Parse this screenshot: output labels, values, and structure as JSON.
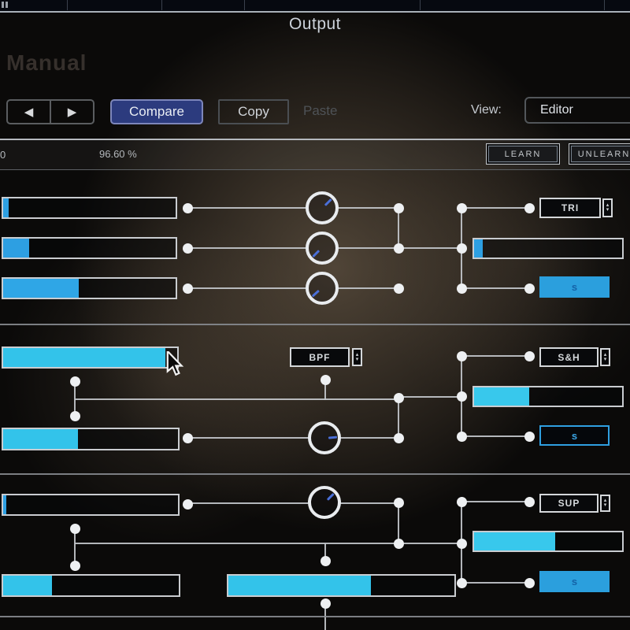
{
  "header": {
    "title": "Output",
    "manual": "Manual"
  },
  "toolbar": {
    "prev": "◀",
    "next": "▶",
    "compare": "Compare",
    "copy": "Copy",
    "paste": "Paste",
    "view_label": "View:",
    "view_value": "Editor"
  },
  "automation": {
    "left_value": "0",
    "percent": "96.60 %",
    "learn": "LEARN",
    "unlearn": "UNLEARN"
  },
  "selects": {
    "lfo1_wave": "TRI",
    "filter_type": "BPF",
    "lfo2_wave": "S&H",
    "lfo3_wave": "SUP"
  },
  "sync": {
    "s1": "s",
    "s2": "s",
    "s3": "s"
  },
  "ui_glyphs": {
    "stepper_up": "▴",
    "stepper_down": "▾"
  },
  "colors": {
    "accent_blue": "#2d9fe2",
    "accent_cyan": "#38c8ec",
    "compare_bg": "#2c3b7e"
  },
  "sliders": {
    "m1_rate": {
      "pct": 3,
      "color": "#2d9fe2"
    },
    "m1_amt": {
      "pct": 15,
      "color": "#2d9fe2"
    },
    "m1_depth": {
      "pct": 44,
      "color": "#2fa6e6"
    },
    "m1_out": {
      "pct": 6,
      "color": "#2d9fe2"
    },
    "m2_rate": {
      "pct": 93,
      "color": "#33c3ea"
    },
    "m2_out": {
      "pct": 37,
      "color": "#38c8ec"
    },
    "m2_depth": {
      "pct": 43,
      "color": "#33c3ea"
    },
    "m3_rate": {
      "pct": 2,
      "color": "#2d9fe2"
    },
    "m3_out": {
      "pct": 55,
      "color": "#38c8ec"
    },
    "m3_depth": {
      "pct": 28,
      "color": "#33c3ea"
    },
    "m3_shape": {
      "pct": 63,
      "color": "#33c3ea"
    }
  },
  "knobs": {
    "k1": {
      "angle": 45
    },
    "k2": {
      "angle": 225
    },
    "k3": {
      "angle": 228
    },
    "k4": {
      "angle": 85
    },
    "k5": {
      "angle": 45
    }
  }
}
